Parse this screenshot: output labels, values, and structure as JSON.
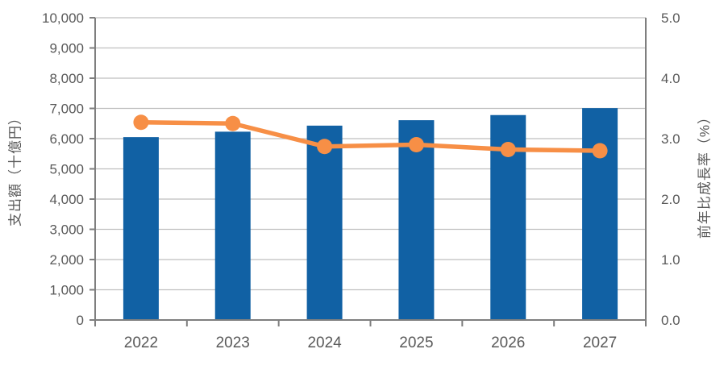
{
  "chart_data": {
    "type": "bar+line",
    "categories": [
      "2022",
      "2023",
      "2024",
      "2025",
      "2026",
      "2027"
    ],
    "series": [
      {
        "name": "支出額",
        "type": "bar",
        "axis": "left",
        "values": [
          6050,
          6230,
          6430,
          6610,
          6780,
          7010
        ]
      },
      {
        "name": "前年比成長率",
        "type": "line",
        "axis": "right",
        "values": [
          3.27,
          3.25,
          2.87,
          2.9,
          2.82,
          2.8
        ]
      }
    ],
    "left_axis": {
      "label": "支出額（十億円）",
      "min": 0,
      "max": 10000,
      "tick_step": 1000,
      "tick_labels": [
        "0",
        "1,000",
        "2,000",
        "3,000",
        "4,000",
        "5,000",
        "6,000",
        "7,000",
        "8,000",
        "9,000",
        "10,000"
      ]
    },
    "right_axis": {
      "label": "前年比成長率（%）",
      "min": 0,
      "max": 5,
      "tick_step": 1,
      "tick_labels": [
        "0.0",
        "1.0",
        "2.0",
        "3.0",
        "4.0",
        "5.0"
      ]
    },
    "grid": true,
    "legend": false,
    "colors": {
      "bar": "#1161A4",
      "line": "#F78F46",
      "marker": "#F78F46",
      "gridline": "#BFBFBF",
      "axis": "#7F7F7F",
      "text": "#595959"
    }
  }
}
